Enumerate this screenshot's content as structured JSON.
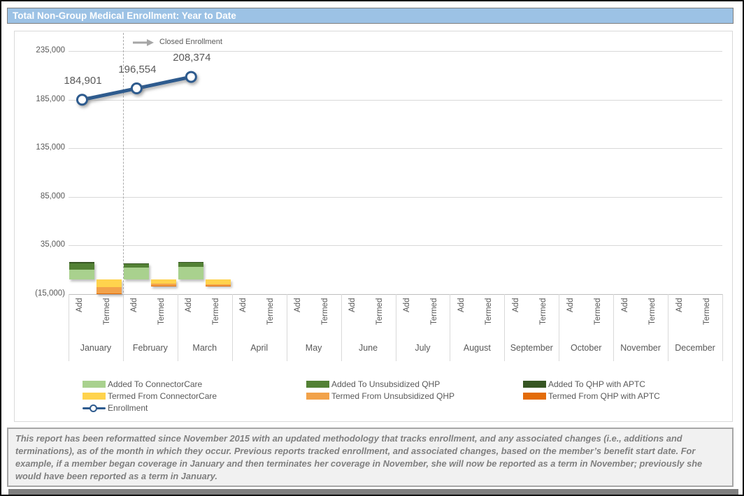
{
  "page": {
    "title": "Total Non-Group Medical Enrollment: Year to Date"
  },
  "annotation": {
    "label": "Closed Enrollment",
    "arrow_icon": "right-arrow",
    "arrow_color": "#A6A6A6"
  },
  "chart_data": {
    "type": "combo-stacked-bar-line",
    "title": "Total Non-Group Medical Enrollment: Year to Date",
    "months": [
      "January",
      "February",
      "March",
      "April",
      "May",
      "June",
      "July",
      "August",
      "September",
      "October",
      "November",
      "December"
    ],
    "sub_categories": [
      "Add",
      "Termed"
    ],
    "y_axis": {
      "tick_labels": [
        "235,000",
        "185,000",
        "135,000",
        "85,000",
        "35,000",
        "(15,000)"
      ],
      "tick_values": [
        235000,
        185000,
        135000,
        85000,
        35000,
        -15000
      ],
      "ylim": [
        -15000,
        235000
      ],
      "grid": true
    },
    "add_series": [
      {
        "name": "Added To ConnectorCare",
        "color": "#A9D18E",
        "values": [
          10000,
          12200,
          12900,
          0,
          0,
          0,
          0,
          0,
          0,
          0,
          0,
          0
        ]
      },
      {
        "name": "Added To Unsubsidized QHP",
        "color": "#538135",
        "values": [
          6500,
          3900,
          4600,
          0,
          0,
          0,
          0,
          0,
          0,
          0,
          0,
          0
        ]
      },
      {
        "name": "Added To QHP with APTC",
        "color": "#375623",
        "values": [
          1400,
          600,
          500,
          0,
          0,
          0,
          0,
          0,
          0,
          0,
          0,
          0
        ]
      }
    ],
    "termed_series": [
      {
        "name": "Termed From ConnectorCare",
        "color": "#FFD34D",
        "values": [
          -7900,
          -4300,
          -5000,
          0,
          0,
          0,
          0,
          0,
          0,
          0,
          0,
          0
        ]
      },
      {
        "name": "Termed From Unsubsidized QHP",
        "color": "#F2A24A",
        "values": [
          -6400,
          -2200,
          -1300,
          0,
          0,
          0,
          0,
          0,
          0,
          0,
          0,
          0
        ]
      },
      {
        "name": "Termed From QHP with APTC",
        "color": "#E36C09",
        "values": [
          -500,
          -300,
          -200,
          0,
          0,
          0,
          0,
          0,
          0,
          0,
          0,
          0
        ]
      }
    ],
    "line_series": {
      "name": "Enrollment",
      "color": "#2E5B8E",
      "values": [
        184901,
        196554,
        208374,
        null,
        null,
        null,
        null,
        null,
        null,
        null,
        null,
        null
      ],
      "value_labels": [
        "184,901",
        "196,554",
        "208,374"
      ]
    },
    "closed_enrollment_divider_after_month_index": 1,
    "legend_position": "bottom"
  },
  "legend": {
    "columns": [
      {
        "items": [
          {
            "label": "Added To ConnectorCare",
            "swatch": "rect",
            "color": "#A9D18E"
          },
          {
            "label": "Termed From ConnectorCare",
            "swatch": "rect",
            "color": "#FFD34D"
          },
          {
            "label": "Enrollment",
            "swatch": "line-marker",
            "color": "#2E5B8E"
          }
        ]
      },
      {
        "items": [
          {
            "label": "Added To Unsubsidized QHP",
            "swatch": "rect",
            "color": "#538135"
          },
          {
            "label": "Termed From Unsubsidized QHP",
            "swatch": "rect",
            "color": "#F2A24A"
          }
        ]
      },
      {
        "items": [
          {
            "label": "Added To QHP with APTC",
            "swatch": "rect",
            "color": "#375623"
          },
          {
            "label": "Termed From QHP with APTC",
            "swatch": "rect",
            "color": "#E36C09"
          }
        ]
      }
    ]
  },
  "footer": {
    "text": "This report has been reformatted since November 2015 with an updated methodology that tracks enrollment, and any associated changes (i.e., additions and terminations), as of the month in which they occur.  Previous reports tracked enrollment, and associated changes, based on the member’s benefit start date.  For example, if a member began coverage in January and then terminates her coverage in November, she will now be reported as a term in November; previously she would have been reported as a term in January."
  },
  "colors": {
    "title_bg": "#9CC2E5",
    "grid": "#D9D9D9",
    "axis_text": "#595959",
    "footer_text": "#7F7F7F"
  }
}
